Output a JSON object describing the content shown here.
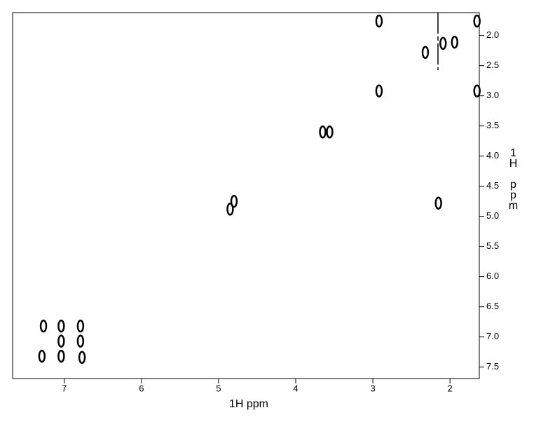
{
  "chart_data": {
    "type": "scatter",
    "x_label": "1H ppm",
    "y_label": "1H ppm",
    "xlim": [
      7.67,
      1.62
    ],
    "ylim": [
      1.62,
      7.69
    ],
    "xticks": [
      7,
      6,
      5,
      4,
      3,
      2
    ],
    "yticks": [
      {
        "value": 2,
        "label": "2.0"
      },
      {
        "value": 2.5,
        "label": "2.5"
      },
      {
        "value": 3,
        "label": "3.0"
      },
      {
        "value": 3.5,
        "label": "3.5"
      },
      {
        "value": 4,
        "label": "4.0"
      },
      {
        "value": 4.5,
        "label": "4.5"
      },
      {
        "value": 5,
        "label": "5.0"
      },
      {
        "value": 5.5,
        "label": "5.5"
      },
      {
        "value": 6,
        "label": "6.0"
      },
      {
        "value": 6.5,
        "label": "6.5"
      },
      {
        "value": 7,
        "label": "7.0"
      },
      {
        "value": 7.5,
        "label": "7.5"
      }
    ],
    "color": "#000000",
    "x": [
      7.27,
      7.29,
      7.04,
      7.04,
      7.04,
      6.79,
      6.79,
      6.77,
      4.85,
      4.8,
      3.65,
      3.56,
      2.92,
      2.92,
      1.65,
      1.65,
      2.09,
      2.32,
      2.15,
      1.94
    ],
    "values": [
      6.82,
      7.32,
      6.82,
      7.07,
      7.32,
      6.82,
      7.07,
      7.34,
      4.88,
      4.75,
      3.6,
      3.6,
      1.76,
      2.92,
      1.76,
      2.92,
      2.13,
      2.28,
      4.78,
      2.11
    ]
  }
}
